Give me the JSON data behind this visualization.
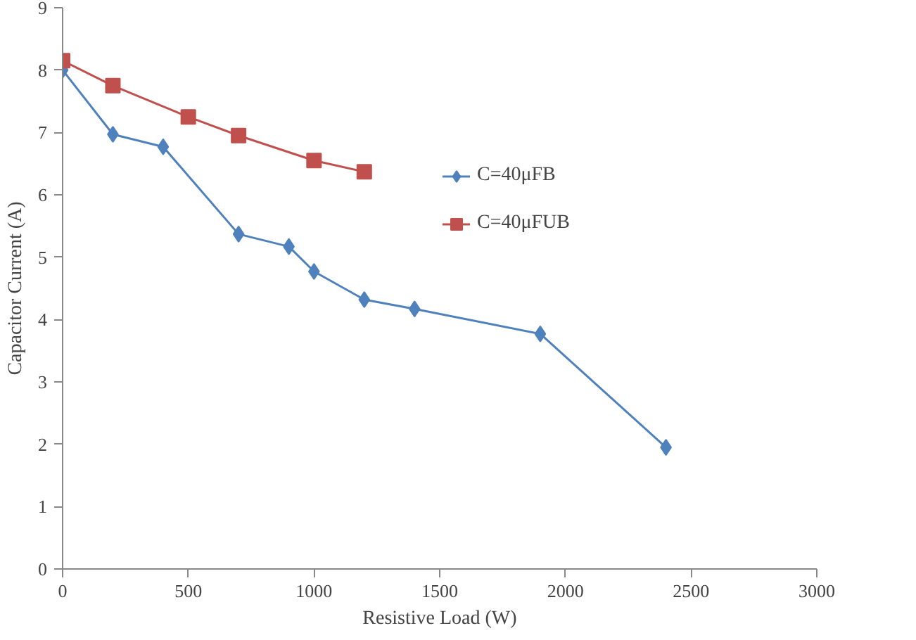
{
  "chart_data": {
    "type": "line",
    "xlabel": "Resistive Load (W)",
    "ylabel": "Capacitor Current (A)",
    "xlim": [
      0,
      3000
    ],
    "xticks": [
      0,
      500,
      1000,
      1500,
      2000,
      2500,
      3000
    ],
    "ylim": [
      0,
      9
    ],
    "yticks": [
      0,
      1,
      2,
      3,
      4,
      5,
      6,
      7,
      8,
      9
    ],
    "grid": false,
    "legend": "right",
    "series": [
      {
        "name": "C=40μFB",
        "color": "#4f81bd",
        "marker": "diamond",
        "x": [
          0,
          200,
          400,
          700,
          900,
          1000,
          1200,
          1400,
          1900,
          2400
        ],
        "values": [
          8.0,
          6.97,
          6.77,
          5.37,
          5.17,
          4.77,
          4.32,
          4.17,
          3.77,
          1.95
        ]
      },
      {
        "name": "C=40μFUB",
        "color": "#c0504d",
        "marker": "square",
        "x": [
          0,
          200,
          500,
          700,
          1000,
          1200
        ],
        "values": [
          8.15,
          7.75,
          7.25,
          6.95,
          6.55,
          6.37
        ]
      }
    ]
  }
}
